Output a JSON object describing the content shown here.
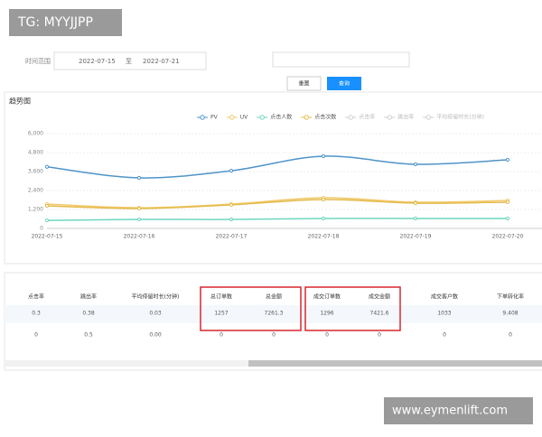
{
  "watermark_top": "TG: MYYJJPP",
  "filter": {
    "label": "时间范围",
    "start": "2022-07-15",
    "separator": "至",
    "end": "2022-07-21"
  },
  "buttons": {
    "reset": "重置",
    "query": "查询"
  },
  "section_title": "趋势图",
  "chart_data": {
    "type": "line",
    "categories": [
      "2022-07-15",
      "2022-07-16",
      "2022-07-17",
      "2022-07-18",
      "2022-07-19",
      "2022-07-20"
    ],
    "series": [
      {
        "name": "PV",
        "color": "#4e94c8",
        "values": [
          3900,
          3200,
          3650,
          4570,
          4060,
          4340
        ]
      },
      {
        "name": "UV",
        "color": "#f3c96a",
        "values": [
          1540,
          1310,
          1540,
          1940,
          1660,
          1770
        ]
      },
      {
        "name": "点击人数",
        "color": "#6fd6c0",
        "values": [
          510,
          570,
          570,
          630,
          630,
          630
        ]
      },
      {
        "name": "点击次数",
        "color": "#e3bb4e",
        "values": [
          1430,
          1260,
          1490,
          1830,
          1600,
          1660
        ]
      },
      {
        "name": "点击率",
        "color": "#cfcfcf",
        "visible": false
      },
      {
        "name": "跳出率",
        "color": "#cfcfcf",
        "visible": false
      },
      {
        "name": "平均停留时长(分钟)",
        "color": "#cfcfcf",
        "visible": false
      }
    ],
    "ylim": [
      0,
      6000
    ],
    "yticks": [
      {
        "value": 0,
        "label": "0"
      },
      {
        "value": 1200,
        "label": "1,200"
      },
      {
        "value": 2400,
        "label": "2,400"
      },
      {
        "value": 3600,
        "label": "3,600"
      },
      {
        "value": 4800,
        "label": "4,800"
      },
      {
        "value": 6000,
        "label": "6,000"
      }
    ],
    "grid": true
  },
  "table": {
    "header": [
      "点击率",
      "跳出率",
      "平均停留时长(分钟)",
      "总订单数",
      "总金额",
      "成交订单数",
      "成交金额",
      "成交客户数",
      "下单转化率"
    ],
    "rows": [
      [
        0.3,
        0.38,
        0.03,
        1257,
        7261.3,
        1296,
        7421.6,
        1033,
        9.408
      ],
      [
        0,
        0.5,
        "0.00",
        0,
        0,
        0,
        0,
        0,
        0
      ]
    ]
  },
  "watermark_bottom": "www.eymenlift.com"
}
